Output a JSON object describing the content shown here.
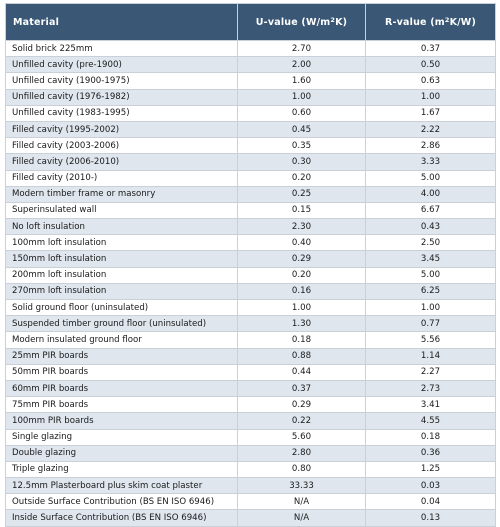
{
  "table": {
    "headers": {
      "material": "Material",
      "u_value_prefix": "U-value (W/m",
      "u_value_sup": "2",
      "u_value_suffix": "K)",
      "r_value_prefix": "R-value (m",
      "r_value_sup": "2",
      "r_value_suffix": "K/W)"
    },
    "rows": [
      {
        "material": "Solid brick 225mm",
        "u": "2.70",
        "r": "0.37"
      },
      {
        "material": "Unfilled cavity (pre-1900)",
        "u": "2.00",
        "r": "0.50"
      },
      {
        "material": "Unfilled cavity (1900-1975)",
        "u": "1.60",
        "r": "0.63"
      },
      {
        "material": "Unfilled cavity (1976-1982)",
        "u": "1.00",
        "r": "1.00"
      },
      {
        "material": "Unfilled cavity (1983-1995)",
        "u": "0.60",
        "r": "1.67"
      },
      {
        "material": "Filled cavity (1995-2002)",
        "u": "0.45",
        "r": "2.22"
      },
      {
        "material": "Filled cavity (2003-2006)",
        "u": "0.35",
        "r": "2.86"
      },
      {
        "material": "Filled cavity (2006-2010)",
        "u": "0.30",
        "r": "3.33"
      },
      {
        "material": "Filled cavity (2010-)",
        "u": "0.20",
        "r": "5.00"
      },
      {
        "material": "Modern timber frame or masonry",
        "u": "0.25",
        "r": "4.00"
      },
      {
        "material": "Superinsulated wall",
        "u": "0.15",
        "r": "6.67"
      },
      {
        "material": "No loft insulation",
        "u": "2.30",
        "r": "0.43"
      },
      {
        "material": "100mm loft insulation",
        "u": "0.40",
        "r": "2.50"
      },
      {
        "material": "150mm loft insulation",
        "u": "0.29",
        "r": "3.45"
      },
      {
        "material": "200mm loft insulation",
        "u": "0.20",
        "r": "5.00"
      },
      {
        "material": "270mm loft insulation",
        "u": "0.16",
        "r": "6.25"
      },
      {
        "material": "Solid ground floor (uninsulated)",
        "u": "1.00",
        "r": "1.00"
      },
      {
        "material": "Suspended timber ground floor (uninsulated)",
        "u": "1.30",
        "r": "0.77"
      },
      {
        "material": "Modern insulated ground floor",
        "u": "0.18",
        "r": "5.56"
      },
      {
        "material": "25mm PIR boards",
        "u": "0.88",
        "r": "1.14"
      },
      {
        "material": "50mm PIR boards",
        "u": "0.44",
        "r": "2.27"
      },
      {
        "material": "60mm PIR boards",
        "u": "0.37",
        "r": "2.73"
      },
      {
        "material": "75mm PIR boards",
        "u": "0.29",
        "r": "3.41"
      },
      {
        "material": "100mm PIR boards",
        "u": "0.22",
        "r": "4.55"
      },
      {
        "material": "Single glazing",
        "u": "5.60",
        "r": "0.18"
      },
      {
        "material": "Double glazing",
        "u": "2.80",
        "r": "0.36"
      },
      {
        "material": "Triple glazing",
        "u": "0.80",
        "r": "1.25"
      },
      {
        "material": "12.5mm Plasterboard plus skim coat plaster",
        "u": "33.33",
        "r": "0.03"
      },
      {
        "material": "Outside Surface Contribution (BS EN ISO 6946)",
        "u": "N/A",
        "r": "0.04"
      },
      {
        "material": "Inside Surface Contribution (BS EN ISO 6946)",
        "u": "N/A",
        "r": "0.13"
      }
    ]
  }
}
